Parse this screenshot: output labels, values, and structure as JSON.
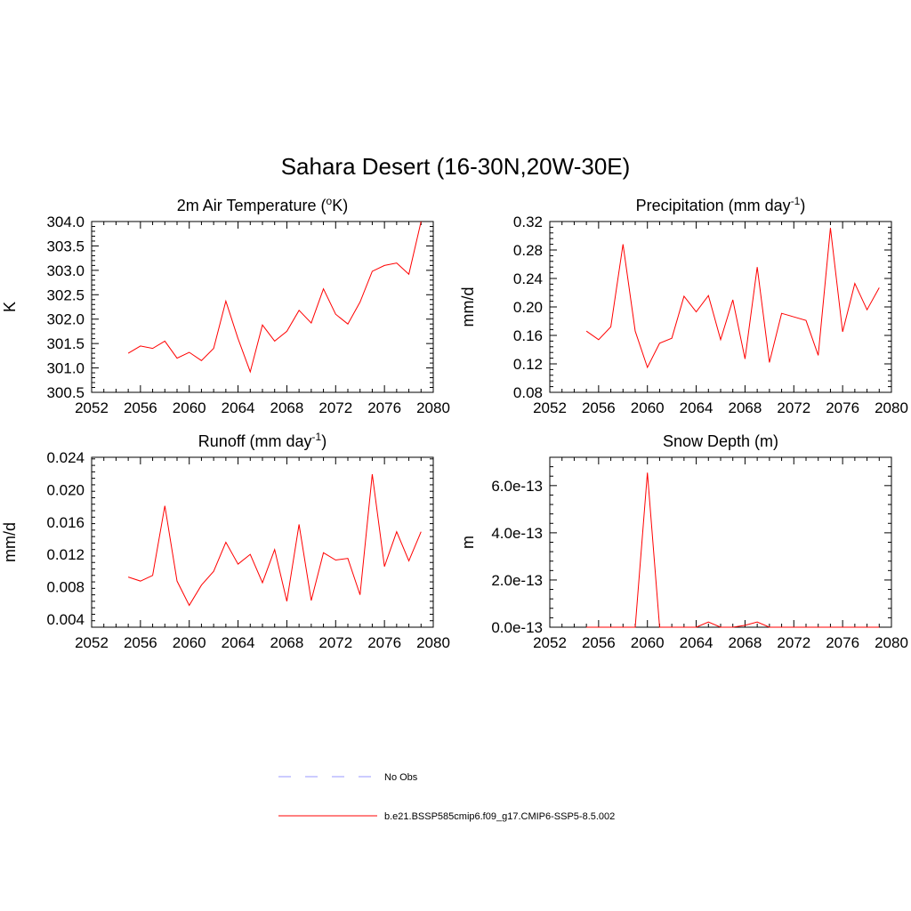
{
  "figure": {
    "title": "Sahara Desert (16-30N,20W-30E)"
  },
  "legend": {
    "items": [
      {
        "label": "No Obs",
        "color": "#9999ff",
        "style": "dashed"
      },
      {
        "label": "b.e21.BSSP585cmip6.f09_g17.CMIP6-SSP5-8.5.002",
        "color": "#ff0000",
        "style": "solid"
      }
    ]
  },
  "chart_data": [
    {
      "type": "line",
      "title": "2m Air Temperature (",
      "title_sup": "o",
      "title_after": "K)",
      "ylabel": "K",
      "xlim": [
        2052,
        2080
      ],
      "ylim": [
        300.5,
        304.0
      ],
      "xticks": [
        2052,
        2056,
        2060,
        2064,
        2068,
        2072,
        2076,
        2080
      ],
      "yticks": [
        300.5,
        301.0,
        301.5,
        302.0,
        302.5,
        303.0,
        303.5,
        304.0
      ],
      "ytick_labels": [
        "300.5",
        "301.0",
        "301.5",
        "302.0",
        "302.5",
        "303.0",
        "303.5",
        "304.0"
      ],
      "x": [
        2055,
        2056,
        2057,
        2058,
        2059,
        2060,
        2061,
        2062,
        2063,
        2064,
        2065,
        2066,
        2067,
        2068,
        2069,
        2070,
        2071,
        2072,
        2073,
        2074,
        2075,
        2076,
        2077,
        2078,
        2079
      ],
      "series": [
        {
          "color": "#ff0000",
          "values": [
            301.3,
            301.45,
            301.4,
            301.55,
            301.2,
            301.32,
            301.15,
            301.4,
            302.37,
            301.6,
            300.92,
            301.88,
            301.55,
            301.75,
            302.18,
            301.92,
            302.62,
            302.1,
            301.9,
            302.35,
            302.98,
            303.1,
            303.15,
            302.92,
            304.0
          ]
        }
      ]
    },
    {
      "type": "line",
      "title": "Precipitation (mm day",
      "title_sup": "-1",
      "title_after": ")",
      "ylabel": "mm/d",
      "xlim": [
        2052,
        2080
      ],
      "ylim": [
        0.08,
        0.32
      ],
      "xticks": [
        2052,
        2056,
        2060,
        2064,
        2068,
        2072,
        2076,
        2080
      ],
      "yticks": [
        0.08,
        0.12,
        0.16,
        0.2,
        0.24,
        0.28,
        0.32
      ],
      "ytick_labels": [
        "0.08",
        "0.12",
        "0.16",
        "0.20",
        "0.24",
        "0.28",
        "0.32"
      ],
      "x": [
        2055,
        2056,
        2057,
        2058,
        2059,
        2060,
        2061,
        2062,
        2063,
        2064,
        2065,
        2066,
        2067,
        2068,
        2069,
        2070,
        2071,
        2072,
        2073,
        2074,
        2075,
        2076,
        2077,
        2078,
        2079
      ],
      "series": [
        {
          "color": "#ff0000",
          "values": [
            0.166,
            0.154,
            0.172,
            0.288,
            0.166,
            0.115,
            0.149,
            0.156,
            0.215,
            0.193,
            0.216,
            0.154,
            0.21,
            0.127,
            0.256,
            0.122,
            0.191,
            0.186,
            0.181,
            0.132,
            0.311,
            0.165,
            0.233,
            0.196,
            0.227
          ]
        }
      ]
    },
    {
      "type": "line",
      "title": "Runoff (mm day",
      "title_sup": "-1",
      "title_after": ")",
      "ylabel": "mm/d",
      "xlim": [
        2052,
        2080
      ],
      "ylim": [
        0.003,
        0.024
      ],
      "xticks": [
        2052,
        2056,
        2060,
        2064,
        2068,
        2072,
        2076,
        2080
      ],
      "yticks": [
        0.004,
        0.008,
        0.012,
        0.016,
        0.02,
        0.024
      ],
      "ytick_labels": [
        "0.004",
        "0.008",
        "0.012",
        "0.016",
        "0.020",
        "0.024"
      ],
      "x": [
        2055,
        2056,
        2057,
        2058,
        2059,
        2060,
        2061,
        2062,
        2063,
        2064,
        2065,
        2066,
        2067,
        2068,
        2069,
        2070,
        2071,
        2072,
        2073,
        2074,
        2075,
        2076,
        2077,
        2078,
        2079
      ],
      "series": [
        {
          "color": "#ff0000",
          "values": [
            0.0092,
            0.0087,
            0.0094,
            0.018,
            0.0087,
            0.0057,
            0.0082,
            0.0099,
            0.0135,
            0.0108,
            0.012,
            0.0085,
            0.0126,
            0.0062,
            0.0157,
            0.0063,
            0.0122,
            0.0113,
            0.0115,
            0.007,
            0.0219,
            0.0105,
            0.0148,
            0.0112,
            0.0148
          ]
        }
      ]
    },
    {
      "type": "line",
      "title": "Snow Depth (m)",
      "title_sup": "",
      "title_after": "",
      "ylabel": "m",
      "xlim": [
        2052,
        2080
      ],
      "ylim": [
        0,
        7.2e-13
      ],
      "xticks": [
        2052,
        2056,
        2060,
        2064,
        2068,
        2072,
        2076,
        2080
      ],
      "yticks": [
        0,
        2e-13,
        4e-13,
        6e-13
      ],
      "ytick_labels": [
        "0.0e-13",
        "2.0e-13",
        "4.0e-13",
        "6.0e-13"
      ],
      "x": [
        2055,
        2056,
        2057,
        2058,
        2059,
        2060,
        2061,
        2062,
        2063,
        2064,
        2065,
        2066,
        2067,
        2068,
        2069,
        2070,
        2071,
        2072,
        2073,
        2074,
        2075,
        2076,
        2077,
        2078,
        2079
      ],
      "series": [
        {
          "color": "#ff0000",
          "values": [
            0,
            0,
            0,
            0,
            0,
            6.55e-13,
            0,
            0,
            0,
            0,
            2.2e-14,
            0,
            0,
            8e-15,
            2.2e-14,
            0,
            0,
            0,
            0,
            0,
            0,
            0,
            0,
            0,
            0
          ]
        }
      ]
    }
  ]
}
